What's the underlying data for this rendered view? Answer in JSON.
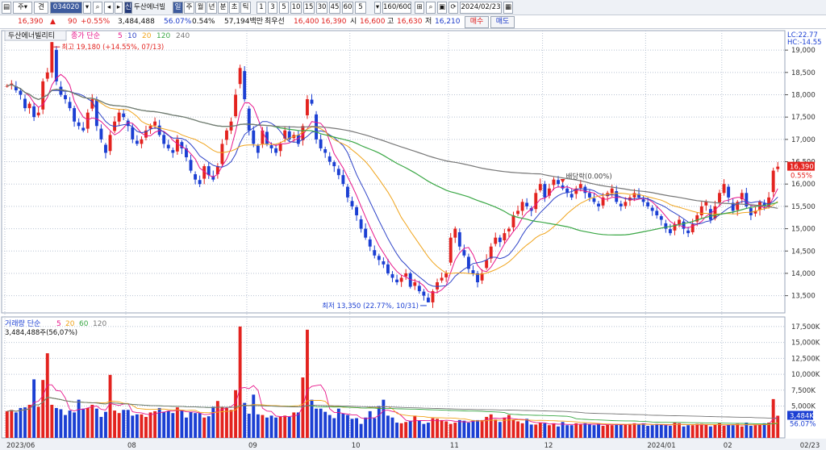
{
  "toolbar": {
    "menu_label": "주",
    "mode_label": "견",
    "code_value": "034020",
    "info_badge": "신",
    "stock_name": "두산에너빌",
    "periods": [
      "일",
      "주",
      "월",
      "년",
      "분",
      "초",
      "틱"
    ],
    "selected_period": "일",
    "intervals": [
      "1",
      "3",
      "5",
      "10",
      "15",
      "30",
      "45",
      "60",
      "5"
    ],
    "count_value": "160",
    "count_total": "/600",
    "date_value": "2024/02/23"
  },
  "quote": {
    "price": "16,390",
    "change": "90",
    "change_pct": "+0.55%",
    "volume": "3,484,488",
    "volume_ratio": "56.07%",
    "turnover": "0.54%",
    "amount": "57,194백만",
    "best_ask_label": "최우선",
    "best_ask": "16,400",
    "best_bid": "16,390",
    "open_label": "시",
    "open": "16,600",
    "high_label": "고",
    "high": "16,630",
    "low_label": "저",
    "low": "16,210",
    "buy_button": "매수",
    "sell_button": "매도"
  },
  "colors": {
    "up": "#e3231f",
    "down": "#1b3fd3",
    "ma5": "#e8178b",
    "ma10": "#2f44c8",
    "ma20": "#f0a41c",
    "ma60": "#3aa745",
    "ma120": "#777777",
    "grid": "#b8c2d2"
  },
  "chart_data": {
    "type": "candlestick",
    "price_legend": {
      "name": "두산에너빌리티",
      "price_type": "종가",
      "ma_type": "단순",
      "periods": [
        "5",
        "10",
        "20",
        "120",
        "240"
      ]
    },
    "volume_legend": {
      "name": "거래량",
      "ma_type": "단순",
      "periods": [
        "5",
        "20",
        "60",
        "120"
      ]
    },
    "volume_info": "3,484,488주(56,07%)",
    "price_axis": {
      "ticks": [
        "19,000",
        "18,500",
        "18,000",
        "17,500",
        "17,000",
        "16,500",
        "16,000",
        "15,500",
        "15,000",
        "14,500",
        "14,000",
        "13,500"
      ],
      "range": [
        13150,
        19400
      ]
    },
    "volume_axis": {
      "ticks": [
        "17,500K",
        "15,000K",
        "12,500K",
        "10,000K",
        "7,500K",
        "5,000K"
      ],
      "range": [
        0,
        18500
      ]
    },
    "x_labels": [
      "2023/06",
      "08",
      "09",
      "10",
      "11",
      "12",
      "2024/01",
      "02"
    ],
    "x_label_positions": [
      0,
      27,
      54,
      77,
      99,
      120,
      143,
      160
    ],
    "end_date_label": "02/23",
    "lc_label": "LC:22.77",
    "hc_label": "HC:-14.55",
    "current_price_label": "16,390",
    "current_change_label": "0.55%",
    "current_volume_label": "3,484K",
    "current_volume_pct": "56.07%",
    "annotations": {
      "high": "최고 19,180 (+14.55%, 07/13)",
      "low": "최저 13,350 (22.77%, 10/31)",
      "dividend": "배당락(0.00%)"
    },
    "closes": [
      18200,
      18250,
      18100,
      18000,
      17700,
      17800,
      17500,
      17600,
      18300,
      18500,
      19180,
      18300,
      18000,
      17900,
      17700,
      17400,
      17300,
      17200,
      17600,
      17900,
      17300,
      17000,
      16700,
      17100,
      17400,
      17600,
      17500,
      17300,
      17000,
      16900,
      17000,
      17200,
      17300,
      17400,
      17100,
      16900,
      16800,
      16700,
      17000,
      16800,
      16600,
      16300,
      16100,
      16000,
      16400,
      16200,
      16100,
      16400,
      16900,
      17200,
      17400,
      18000,
      18600,
      17900,
      17200,
      16900,
      16700,
      17200,
      16900,
      16800,
      16700,
      16900,
      17200,
      17000,
      17100,
      16900,
      17300,
      17900,
      17800,
      17000,
      16800,
      16700,
      16500,
      16400,
      16200,
      16000,
      15700,
      15500,
      15300,
      15000,
      14800,
      14600,
      14400,
      14300,
      14200,
      14000,
      13900,
      13800,
      13900,
      14000,
      13700,
      13800,
      13600,
      13500,
      13350,
      13600,
      13800,
      13900,
      14000,
      14800,
      15000,
      14600,
      14400,
      14100,
      14000,
      13800,
      14000,
      14300,
      14600,
      14800,
      14700,
      14900,
      15000,
      15300,
      15400,
      15600,
      15500,
      15400,
      15800,
      16000,
      15700,
      15900,
      16100,
      16000,
      15900,
      15800,
      15700,
      15900,
      16000,
      15800,
      15700,
      15600,
      15500,
      15700,
      15800,
      15900,
      15600,
      15500,
      15600,
      15700,
      15800,
      15700,
      15600,
      15500,
      15400,
      15300,
      15200,
      15000,
      14900,
      15100,
      15200,
      15000,
      14900,
      15100,
      15300,
      15500,
      15600,
      15200,
      15500,
      15800,
      16000,
      15700,
      15400,
      15600,
      15800,
      15500,
      15300,
      15400,
      15600,
      15500,
      15700,
      16300,
      16390
    ],
    "volumes": [
      4200,
      4400,
      4000,
      4700,
      4800,
      5200,
      9200,
      4900,
      9100,
      13300,
      5200,
      4700,
      4500,
      3600,
      4300,
      4000,
      6000,
      4600,
      4700,
      5200,
      4600,
      3300,
      4100,
      9900,
      4300,
      3900,
      4400,
      4400,
      3500,
      3700,
      3700,
      3300,
      4000,
      4200,
      4700,
      4100,
      4200,
      3900,
      4800,
      4400,
      3200,
      4100,
      3900,
      3900,
      3200,
      3400,
      4900,
      5800,
      4900,
      4700,
      4400,
      7500,
      17500,
      5500,
      3800,
      6800,
      3700,
      3600,
      3200,
      3500,
      3200,
      3300,
      3500,
      3300,
      4000,
      4000,
      9500,
      17000,
      6000,
      4600,
      4600,
      4100,
      3600,
      3100,
      4600,
      3800,
      3600,
      3000,
      3100,
      2200,
      3200,
      4200,
      3100,
      5000,
      6000,
      3500,
      3200,
      2400,
      2300,
      2500,
      2700,
      3500,
      2700,
      2200,
      2400,
      3100,
      3000,
      2800,
      2600,
      2200,
      2400,
      2800,
      2700,
      2400,
      2800,
      2800,
      2800,
      3300,
      3700,
      2900,
      2500,
      3200,
      3600,
      2800,
      2600,
      2300,
      3000,
      2100,
      2100,
      2400,
      2300,
      2000,
      2300,
      1800,
      2500,
      2000,
      2000,
      2300,
      2100,
      2300,
      2100,
      2000,
      2300,
      1900,
      2100,
      2000,
      2200,
      2100,
      2100,
      2200,
      2300,
      2100,
      2300,
      1900,
      2000,
      2200,
      2100,
      2000,
      1900,
      2400,
      2300,
      1800,
      2000,
      2000,
      2200,
      2200,
      2100,
      1800,
      2100,
      2300,
      1900,
      2100,
      2000,
      2200,
      1800,
      2400,
      1900,
      2000,
      2100,
      2300,
      2400,
      6100,
      3484
    ]
  }
}
